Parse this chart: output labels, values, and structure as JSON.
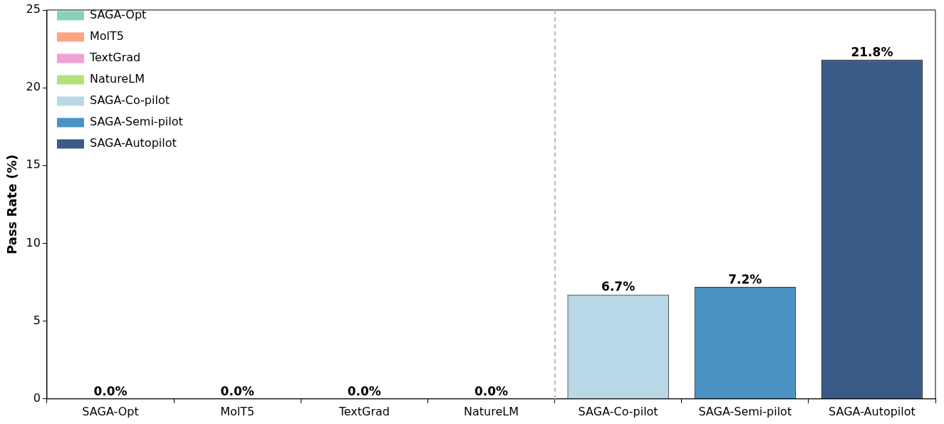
{
  "chart_data": {
    "type": "bar",
    "ylabel": "Pass Rate (%)",
    "categories": [
      "SAGA-Opt",
      "MolT5",
      "TextGrad",
      "NatureLM",
      "SAGA-Co-pilot",
      "SAGA-Semi-pilot",
      "SAGA-Autopilot"
    ],
    "series": [
      {
        "name": "SAGA-Opt",
        "color": "#88d1b9",
        "values": [
          0.0,
          null,
          null,
          null,
          null,
          null,
          null
        ],
        "value_labels": [
          "0.0%",
          null,
          null,
          null,
          null,
          null,
          null
        ]
      },
      {
        "name": "MolT5",
        "color": "#fca582",
        "values": [
          null,
          0.0,
          null,
          null,
          null,
          null,
          null
        ],
        "value_labels": [
          null,
          "0.0%",
          null,
          null,
          null,
          null,
          null
        ]
      },
      {
        "name": "TextGrad",
        "color": "#f0a3d3",
        "values": [
          null,
          null,
          0.0,
          null,
          null,
          null,
          null
        ],
        "value_labels": [
          null,
          null,
          "0.0%",
          null,
          null,
          null,
          null
        ]
      },
      {
        "name": "NatureLM",
        "color": "#b5e07a",
        "values": [
          null,
          null,
          null,
          0.0,
          null,
          null,
          null
        ],
        "value_labels": [
          null,
          null,
          null,
          "0.0%",
          null,
          null,
          null
        ]
      },
      {
        "name": "SAGA-Co-pilot",
        "color": "#b8d8e8",
        "values": [
          null,
          null,
          null,
          null,
          6.7,
          null,
          null
        ],
        "value_labels": [
          null,
          null,
          null,
          null,
          "6.7%",
          null,
          null
        ]
      },
      {
        "name": "SAGA-Semi-pilot",
        "color": "#4a93c4",
        "values": [
          null,
          null,
          null,
          null,
          null,
          7.2,
          null
        ],
        "value_labels": [
          null,
          null,
          null,
          null,
          null,
          "7.2%",
          null
        ]
      },
      {
        "name": "SAGA-Autopilot",
        "color": "#3a5a87",
        "values": [
          null,
          null,
          null,
          null,
          null,
          null,
          21.8
        ],
        "value_labels": [
          null,
          null,
          null,
          null,
          null,
          null,
          "21.8%"
        ]
      }
    ],
    "ylim": [
      0,
      25
    ],
    "yticks": [
      0,
      5,
      10,
      15,
      20,
      25
    ],
    "legend": "top left",
    "grid": false
  }
}
